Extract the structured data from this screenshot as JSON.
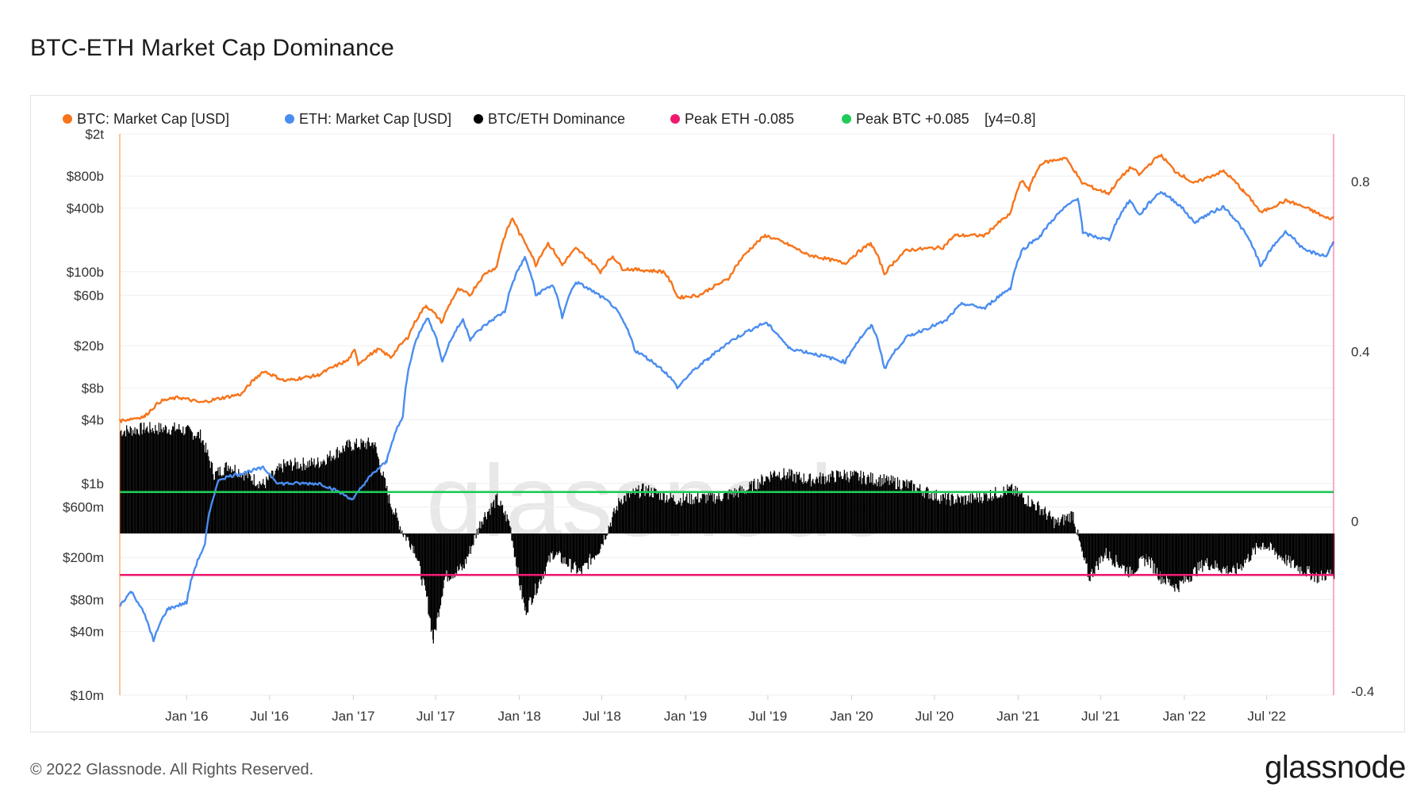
{
  "page": {
    "title": "BTC-ETH Market Cap Dominance",
    "copyright": "© 2022 Glassnode. All Rights Reserved.",
    "logo": "glassnode",
    "watermark": "glassnode"
  },
  "chart_data": {
    "type": "line",
    "title": "BTC-ETH Market Cap Dominance",
    "legend_position": "top-left",
    "legend": [
      {
        "label": "BTC: Market Cap [USD]",
        "color": "#f7741a"
      },
      {
        "label": "ETH: Market Cap [USD]",
        "color": "#4a8df0"
      },
      {
        "label": "BTC/ETH Dominance",
        "color": "#000000"
      },
      {
        "label": "Peak ETH -0.085",
        "color": "#ee1a72"
      },
      {
        "label": "Peak BTC +0.085",
        "color": "#1fcb56"
      },
      {
        "label": "[y4=0.8]",
        "color": ""
      }
    ],
    "x_axis": {
      "range": [
        "2015-08-07",
        "2022-11-25"
      ],
      "ticks": [
        {
          "label": "Jan '16",
          "date": "2016-01-01"
        },
        {
          "label": "Jul '16",
          "date": "2016-07-01"
        },
        {
          "label": "Jan '17",
          "date": "2017-01-01"
        },
        {
          "label": "Jul '17",
          "date": "2017-07-01"
        },
        {
          "label": "Jan '18",
          "date": "2018-01-01"
        },
        {
          "label": "Jul '18",
          "date": "2018-07-01"
        },
        {
          "label": "Jan '19",
          "date": "2019-01-01"
        },
        {
          "label": "Jul '19",
          "date": "2019-07-01"
        },
        {
          "label": "Jan '20",
          "date": "2020-01-01"
        },
        {
          "label": "Jul '20",
          "date": "2020-07-01"
        },
        {
          "label": "Jan '21",
          "date": "2021-01-01"
        },
        {
          "label": "Jul '21",
          "date": "2021-07-01"
        },
        {
          "label": "Jan '22",
          "date": "2022-01-01"
        },
        {
          "label": "Jul '22",
          "date": "2022-07-01"
        }
      ]
    },
    "y_axis_left": {
      "scale": "log",
      "range_usd": [
        10000000,
        2000000000000
      ],
      "ticks": [
        {
          "label": "$2t",
          "value": 2000000000000
        },
        {
          "label": "$800b",
          "value": 800000000000
        },
        {
          "label": "$400b",
          "value": 400000000000
        },
        {
          "label": "$100b",
          "value": 100000000000
        },
        {
          "label": "$60b",
          "value": 60000000000
        },
        {
          "label": "$20b",
          "value": 20000000000
        },
        {
          "label": "$8b",
          "value": 8000000000
        },
        {
          "label": "$4b",
          "value": 4000000000
        },
        {
          "label": "$1b",
          "value": 1000000000
        },
        {
          "label": "$600m",
          "value": 600000000
        },
        {
          "label": "$200m",
          "value": 200000000
        },
        {
          "label": "$80m",
          "value": 80000000
        },
        {
          "label": "$40m",
          "value": 40000000
        },
        {
          "label": "$10m",
          "value": 10000000
        }
      ]
    },
    "y_axis_right": {
      "scale": "linear",
      "range": [
        -0.4,
        0.8
      ],
      "ticks": [
        {
          "label": "0.8",
          "value": 0.8
        },
        {
          "label": "0.4",
          "value": 0.4
        },
        {
          "label": "0",
          "value": 0
        },
        {
          "label": "-0.4",
          "value": -0.4
        }
      ]
    },
    "series": [
      {
        "name": "BTC: Market Cap [USD]",
        "color": "#f7741a",
        "axis": "left",
        "points": [
          [
            "2015-08-07",
            3900000000.0
          ],
          [
            "2015-10-01",
            4300000000.0
          ],
          [
            "2015-11-05",
            6000000000.0
          ],
          [
            "2015-12-15",
            6500000000.0
          ],
          [
            "2016-02-01",
            5800000000.0
          ],
          [
            "2016-05-01",
            7000000000.0
          ],
          [
            "2016-06-18",
            11500000000.0
          ],
          [
            "2016-08-03",
            9300000000.0
          ],
          [
            "2016-10-15",
            10500000000.0
          ],
          [
            "2016-12-20",
            14500000000.0
          ],
          [
            "2017-01-04",
            18000000000.0
          ],
          [
            "2017-01-12",
            13500000000.0
          ],
          [
            "2017-02-25",
            18500000000.0
          ],
          [
            "2017-03-25",
            15500000000.0
          ],
          [
            "2017-05-01",
            24000000000.0
          ],
          [
            "2017-06-10",
            48000000000.0
          ],
          [
            "2017-07-15",
            33000000000.0
          ],
          [
            "2017-08-20",
            68000000000.0
          ],
          [
            "2017-09-15",
            60000000000.0
          ],
          [
            "2017-10-20",
            98000000000.0
          ],
          [
            "2017-11-12",
            110000000000.0
          ],
          [
            "2017-12-17",
            320000000000.0
          ],
          [
            "2018-01-01",
            230000000000.0
          ],
          [
            "2018-02-06",
            115000000000.0
          ],
          [
            "2018-03-05",
            185000000000.0
          ],
          [
            "2018-04-05",
            115000000000.0
          ],
          [
            "2018-05-05",
            165000000000.0
          ],
          [
            "2018-06-28",
            100000000000.0
          ],
          [
            "2018-07-25",
            140000000000.0
          ],
          [
            "2018-08-15",
            107000000000.0
          ],
          [
            "2018-11-15",
            100000000000.0
          ],
          [
            "2018-12-15",
            57000000000.0
          ],
          [
            "2019-02-01",
            60000000000.0
          ],
          [
            "2019-04-05",
            85000000000.0
          ],
          [
            "2019-06-26",
            220000000000.0
          ],
          [
            "2019-08-15",
            180000000000.0
          ],
          [
            "2019-09-25",
            145000000000.0
          ],
          [
            "2019-12-18",
            120000000000.0
          ],
          [
            "2020-02-12",
            185000000000.0
          ],
          [
            "2020-03-13",
            95000000000.0
          ],
          [
            "2020-05-01",
            160000000000.0
          ],
          [
            "2020-07-20",
            170000000000.0
          ],
          [
            "2020-08-15",
            220000000000.0
          ],
          [
            "2020-10-20",
            220000000000.0
          ],
          [
            "2020-12-15",
            350000000000.0
          ],
          [
            "2021-01-08",
            720000000000.0
          ],
          [
            "2021-01-25",
            600000000000.0
          ],
          [
            "2021-02-21",
            1060000000000.0
          ],
          [
            "2021-04-14",
            1190000000000.0
          ],
          [
            "2021-05-19",
            700000000000.0
          ],
          [
            "2021-06-22",
            600000000000.0
          ],
          [
            "2021-07-20",
            550000000000.0
          ],
          [
            "2021-09-06",
            970000000000.0
          ],
          [
            "2021-09-25",
            820000000000.0
          ],
          [
            "2021-11-09",
            1270000000000.0
          ],
          [
            "2021-12-10",
            900000000000.0
          ],
          [
            "2022-01-22",
            680000000000.0
          ],
          [
            "2022-03-28",
            890000000000.0
          ],
          [
            "2022-05-10",
            580000000000.0
          ],
          [
            "2022-06-18",
            360000000000.0
          ],
          [
            "2022-08-13",
            470000000000.0
          ],
          [
            "2022-10-05",
            385000000000.0
          ],
          [
            "2022-11-09",
            320000000000.0
          ],
          [
            "2022-11-25",
            320000000000.0
          ]
        ]
      },
      {
        "name": "ETH: Market Cap [USD]",
        "color": "#4a8df0",
        "axis": "left",
        "points": [
          [
            "2015-08-07",
            70000000.0
          ],
          [
            "2015-09-01",
            95000000.0
          ],
          [
            "2015-10-20",
            32000000.0
          ],
          [
            "2015-11-20",
            65000000.0
          ],
          [
            "2016-01-01",
            75000000.0
          ],
          [
            "2016-02-10",
            260000000.0
          ],
          [
            "2016-03-13",
            1100000000.0
          ],
          [
            "2016-06-17",
            1400000000.0
          ],
          [
            "2016-07-20",
            1000000000.0
          ],
          [
            "2016-10-20",
            1000000000.0
          ],
          [
            "2017-01-01",
            700000000.0
          ],
          [
            "2017-03-15",
            1600000000.0
          ],
          [
            "2017-04-20",
            4200000000.0
          ],
          [
            "2017-06-12",
            37000000000.0
          ],
          [
            "2017-07-16",
            14000000000.0
          ],
          [
            "2017-08-30",
            35000000000.0
          ],
          [
            "2017-09-15",
            23000000000.0
          ],
          [
            "2017-11-30",
            42000000000.0
          ],
          [
            "2018-01-13",
            135000000000.0
          ],
          [
            "2018-02-06",
            60000000000.0
          ],
          [
            "2018-03-15",
            75000000000.0
          ],
          [
            "2018-04-05",
            37000000000.0
          ],
          [
            "2018-05-05",
            80000000000.0
          ],
          [
            "2018-07-25",
            48000000000.0
          ],
          [
            "2018-09-12",
            18000000000.0
          ],
          [
            "2018-11-20",
            11000000000.0
          ],
          [
            "2018-12-15",
            8000000000.0
          ],
          [
            "2019-02-20",
            15000000000.0
          ],
          [
            "2019-06-26",
            33000000000.0
          ],
          [
            "2019-08-15",
            19000000000.0
          ],
          [
            "2019-12-18",
            14000000000.0
          ],
          [
            "2020-02-15",
            31000000000.0
          ],
          [
            "2020-03-13",
            12000000000.0
          ],
          [
            "2020-05-01",
            24000000000.0
          ],
          [
            "2020-07-25",
            34000000000.0
          ],
          [
            "2020-09-01",
            50000000000.0
          ],
          [
            "2020-10-20",
            45000000000.0
          ],
          [
            "2020-12-15",
            70000000000.0
          ],
          [
            "2021-01-10",
            160000000000.0
          ],
          [
            "2021-02-20",
            220000000000.0
          ],
          [
            "2021-05-12",
            500000000000.0
          ],
          [
            "2021-05-23",
            230000000000.0
          ],
          [
            "2021-06-26",
            210000000000.0
          ],
          [
            "2021-07-20",
            200000000000.0
          ],
          [
            "2021-09-03",
            470000000000.0
          ],
          [
            "2021-09-25",
            340000000000.0
          ],
          [
            "2021-11-10",
            570000000000.0
          ],
          [
            "2021-12-20",
            430000000000.0
          ],
          [
            "2022-01-22",
            290000000000.0
          ],
          [
            "2022-03-28",
            410000000000.0
          ],
          [
            "2022-05-12",
            240000000000.0
          ],
          [
            "2022-06-18",
            110000000000.0
          ],
          [
            "2022-08-13",
            240000000000.0
          ],
          [
            "2022-09-20",
            160000000000.0
          ],
          [
            "2022-11-09",
            140000000000.0
          ],
          [
            "2022-11-25",
            190000000000.0
          ]
        ]
      },
      {
        "name": "BTC/ETH Dominance",
        "color": "#000000",
        "axis": "right",
        "render": "columns",
        "points": [
          [
            "2015-08-07",
            0.21
          ],
          [
            "2015-10-01",
            0.215
          ],
          [
            "2015-12-15",
            0.215
          ],
          [
            "2016-02-01",
            0.2
          ],
          [
            "2016-03-01",
            0.12
          ],
          [
            "2016-04-01",
            0.14
          ],
          [
            "2016-06-17",
            0.1
          ],
          [
            "2016-08-01",
            0.14
          ],
          [
            "2016-10-15",
            0.145
          ],
          [
            "2016-12-20",
            0.18
          ],
          [
            "2017-02-15",
            0.185
          ],
          [
            "2017-03-20",
            0.07
          ],
          [
            "2017-04-20",
            0.0
          ],
          [
            "2017-05-15",
            -0.03
          ],
          [
            "2017-06-12",
            -0.14
          ],
          [
            "2017-06-25",
            -0.22
          ],
          [
            "2017-07-20",
            -0.09
          ],
          [
            "2017-08-30",
            -0.07
          ],
          [
            "2017-10-10",
            0.03
          ],
          [
            "2017-11-12",
            0.07
          ],
          [
            "2017-12-10",
            0.02
          ],
          [
            "2017-12-31",
            -0.1
          ],
          [
            "2018-01-13",
            -0.16
          ],
          [
            "2018-03-15",
            -0.04
          ],
          [
            "2018-05-15",
            -0.08
          ],
          [
            "2018-06-25",
            -0.03
          ],
          [
            "2018-08-10",
            0.07
          ],
          [
            "2018-10-01",
            0.09
          ],
          [
            "2018-12-10",
            0.07
          ],
          [
            "2019-03-15",
            0.075
          ],
          [
            "2019-05-15",
            0.09
          ],
          [
            "2019-07-15",
            0.125
          ],
          [
            "2019-10-01",
            0.11
          ],
          [
            "2019-12-15",
            0.12
          ],
          [
            "2020-03-01",
            0.11
          ],
          [
            "2020-05-01",
            0.1
          ],
          [
            "2020-07-25",
            0.07
          ],
          [
            "2020-09-15",
            0.07
          ],
          [
            "2020-11-01",
            0.08
          ],
          [
            "2020-12-15",
            0.09
          ],
          [
            "2021-02-20",
            0.05
          ],
          [
            "2021-03-25",
            0.02
          ],
          [
            "2021-05-01",
            0.04
          ],
          [
            "2021-05-12",
            -0.01
          ],
          [
            "2021-05-23",
            -0.05
          ],
          [
            "2021-06-05",
            -0.09
          ],
          [
            "2021-07-10",
            -0.04
          ],
          [
            "2021-09-03",
            -0.08
          ],
          [
            "2021-10-10",
            -0.05
          ],
          [
            "2021-11-10",
            -0.09
          ],
          [
            "2021-12-15",
            -0.11
          ],
          [
            "2022-02-15",
            -0.06
          ],
          [
            "2022-04-20",
            -0.08
          ],
          [
            "2022-06-20",
            -0.02
          ],
          [
            "2022-08-20",
            -0.06
          ],
          [
            "2022-10-20",
            -0.09
          ],
          [
            "2022-11-25",
            -0.08
          ]
        ]
      },
      {
        "name": "Peak ETH -0.085",
        "color": "#ee1a72",
        "axis": "right",
        "constant": -0.085
      },
      {
        "name": "Peak BTC +0.085",
        "color": "#1fcb56",
        "axis": "right",
        "constant": 0.085
      }
    ]
  }
}
